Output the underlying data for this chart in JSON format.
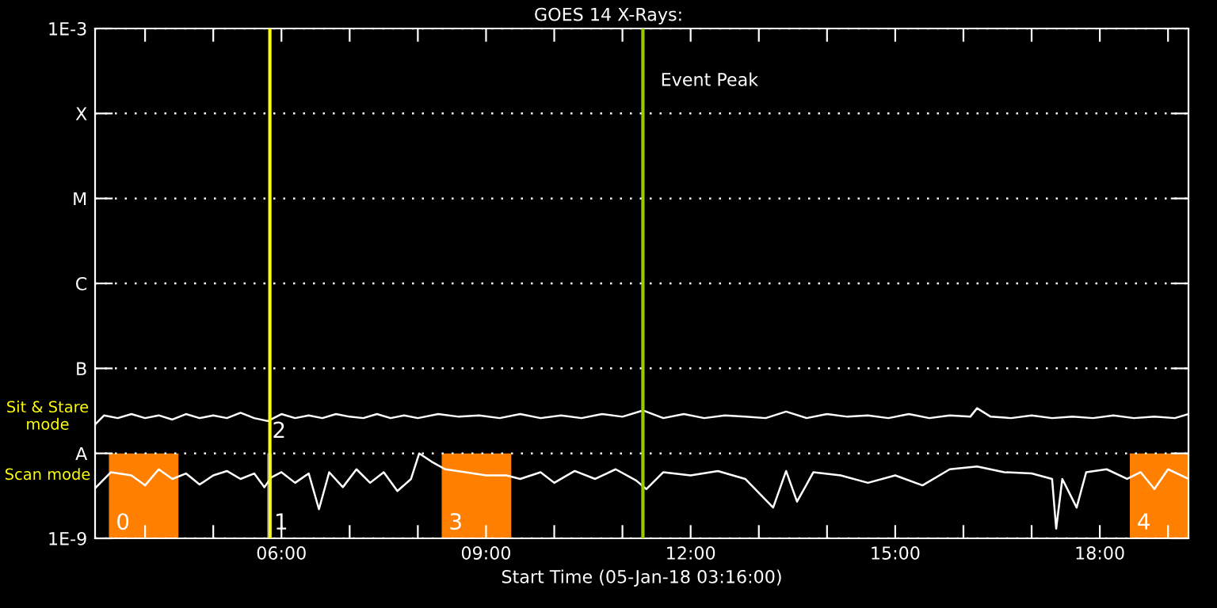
{
  "chart_data": {
    "type": "line",
    "title": "GOES 14 X-Rays:",
    "xlabel": "Start Time (05-Jan-18 03:16:00)",
    "log": true,
    "grid": "y",
    "legend": false,
    "marker": "none",
    "line_style": "solid",
    "xlim": [
      3.267,
      19.3
    ],
    "ylim": [
      1e-09,
      0.001
    ],
    "xticks": [
      {
        "value": 4,
        "label": null
      },
      {
        "value": 5,
        "label": null
      },
      {
        "value": 6,
        "label": "06:00"
      },
      {
        "value": 7,
        "label": null
      },
      {
        "value": 8,
        "label": null
      },
      {
        "value": 9,
        "label": "09:00"
      },
      {
        "value": 10,
        "label": null
      },
      {
        "value": 11,
        "label": null
      },
      {
        "value": 12,
        "label": "12:00"
      },
      {
        "value": 13,
        "label": null
      },
      {
        "value": 14,
        "label": null
      },
      {
        "value": 15,
        "label": "15:00"
      },
      {
        "value": 16,
        "label": null
      },
      {
        "value": 17,
        "label": null
      },
      {
        "value": 18,
        "label": "18:00"
      },
      {
        "value": 19,
        "label": null
      }
    ],
    "yticks": [
      {
        "value": 1e-09,
        "label": "1E-9"
      },
      {
        "value": 1e-08,
        "label": "A"
      },
      {
        "value": 1e-07,
        "label": "B"
      },
      {
        "value": 1e-06,
        "label": "C"
      },
      {
        "value": 1e-05,
        "label": "M"
      },
      {
        "value": 0.0001,
        "label": "X"
      },
      {
        "value": 0.001,
        "label": "1E-3"
      }
    ],
    "series": [
      {
        "name": "Sit & Stare mode",
        "color": "#ffffff",
        "x": [
          3.27,
          3.4,
          3.6,
          3.8,
          4.0,
          4.2,
          4.4,
          4.6,
          4.8,
          5.0,
          5.2,
          5.4,
          5.6,
          5.8,
          6.0,
          6.2,
          6.4,
          6.6,
          6.8,
          7.0,
          7.2,
          7.4,
          7.6,
          7.8,
          8.0,
          8.3,
          8.6,
          8.9,
          9.2,
          9.5,
          9.8,
          10.1,
          10.4,
          10.7,
          11.0,
          11.3,
          11.6,
          11.9,
          12.2,
          12.5,
          12.8,
          13.1,
          13.4,
          13.7,
          14.0,
          14.3,
          14.6,
          14.9,
          15.2,
          15.5,
          15.8,
          16.1,
          16.2,
          16.4,
          16.7,
          17.0,
          17.3,
          17.6,
          17.9,
          18.2,
          18.5,
          18.8,
          19.1,
          19.3
        ],
        "values": [
          2.2e-08,
          2.8e-08,
          2.6e-08,
          2.9e-08,
          2.6e-08,
          2.8e-08,
          2.5e-08,
          2.9e-08,
          2.6e-08,
          2.8e-08,
          2.6e-08,
          3e-08,
          2.6e-08,
          2.4e-08,
          2.9e-08,
          2.6e-08,
          2.8e-08,
          2.6e-08,
          2.9e-08,
          2.7e-08,
          2.6e-08,
          2.9e-08,
          2.6e-08,
          2.8e-08,
          2.6e-08,
          2.9e-08,
          2.7e-08,
          2.8e-08,
          2.6e-08,
          2.9e-08,
          2.6e-08,
          2.8e-08,
          2.6e-08,
          2.9e-08,
          2.7e-08,
          3.2e-08,
          2.6e-08,
          2.9e-08,
          2.6e-08,
          2.8e-08,
          2.7e-08,
          2.6e-08,
          3.1e-08,
          2.6e-08,
          2.9e-08,
          2.7e-08,
          2.8e-08,
          2.6e-08,
          2.9e-08,
          2.6e-08,
          2.8e-08,
          2.7e-08,
          3.4e-08,
          2.7e-08,
          2.6e-08,
          2.8e-08,
          2.6e-08,
          2.7e-08,
          2.6e-08,
          2.8e-08,
          2.6e-08,
          2.7e-08,
          2.6e-08,
          2.9e-08
        ]
      },
      {
        "name": "Scan mode",
        "color": "#ffffff",
        "x": [
          3.27,
          3.5,
          3.8,
          4.0,
          4.2,
          4.4,
          4.6,
          4.8,
          5.0,
          5.2,
          5.4,
          5.6,
          5.75,
          5.85,
          6.0,
          6.2,
          6.4,
          6.55,
          6.7,
          6.9,
          7.1,
          7.3,
          7.5,
          7.7,
          7.9,
          8.02,
          8.2,
          8.4,
          8.7,
          9.0,
          9.3,
          9.5,
          9.8,
          10.0,
          10.3,
          10.6,
          10.9,
          11.2,
          11.35,
          11.6,
          12.0,
          12.4,
          12.8,
          13.21,
          13.4,
          13.56,
          13.8,
          14.2,
          14.6,
          15.0,
          15.4,
          15.8,
          16.2,
          16.6,
          17.0,
          17.3,
          17.36,
          17.45,
          17.66,
          17.8,
          18.1,
          18.4,
          18.6,
          18.8,
          19.0,
          19.3
        ],
        "values": [
          3.9e-09,
          6e-09,
          5.5e-09,
          4.2e-09,
          6.5e-09,
          5e-09,
          5.8e-09,
          4.3e-09,
          5.5e-09,
          6.2e-09,
          5e-09,
          5.8e-09,
          4e-09,
          5.2e-09,
          6e-09,
          4.5e-09,
          5.8e-09,
          2.2e-09,
          6e-09,
          4e-09,
          6.5e-09,
          4.5e-09,
          6e-09,
          3.6e-09,
          5e-09,
          1e-08,
          8e-09,
          6.5e-09,
          6e-09,
          5.5e-09,
          5.5e-09,
          5e-09,
          6e-09,
          4.5e-09,
          6.2e-09,
          5e-09,
          6.5e-09,
          4.8e-09,
          3.8e-09,
          6e-09,
          5.5e-09,
          6.2e-09,
          5e-09,
          2.3e-09,
          6.2e-09,
          2.7e-09,
          6e-09,
          5.5e-09,
          4.5e-09,
          5.5e-09,
          4.2e-09,
          6.5e-09,
          7e-09,
          6e-09,
          5.8e-09,
          5e-09,
          1.3e-09,
          5e-09,
          2.3e-09,
          6e-09,
          6.5e-09,
          5e-09,
          6e-09,
          3.8e-09,
          6.5e-09,
          5e-09
        ]
      }
    ],
    "bands": [
      {
        "axis": "x",
        "from": 3.47,
        "to": 4.49,
        "label": "0",
        "color": "#ff8000"
      },
      {
        "axis": "x",
        "from": 5.79,
        "to": 5.86,
        "label": "1",
        "color": "#6666ff"
      },
      {
        "axis": "x",
        "from": 8.35,
        "to": 9.37,
        "label": "3",
        "color": "#ff8000"
      },
      {
        "axis": "x",
        "from": 18.44,
        "to": 19.3,
        "label": "4",
        "color": "#ff8000"
      }
    ],
    "annotations": [
      {
        "text": "2",
        "x": 5.83,
        "y": 2.7e-08
      }
    ],
    "ref_lines": [
      {
        "axis": "x",
        "value": 5.83,
        "color": "#ffff00"
      },
      {
        "axis": "x",
        "value": 11.3,
        "label": "Event Peak",
        "color": "#99cc00"
      }
    ]
  }
}
